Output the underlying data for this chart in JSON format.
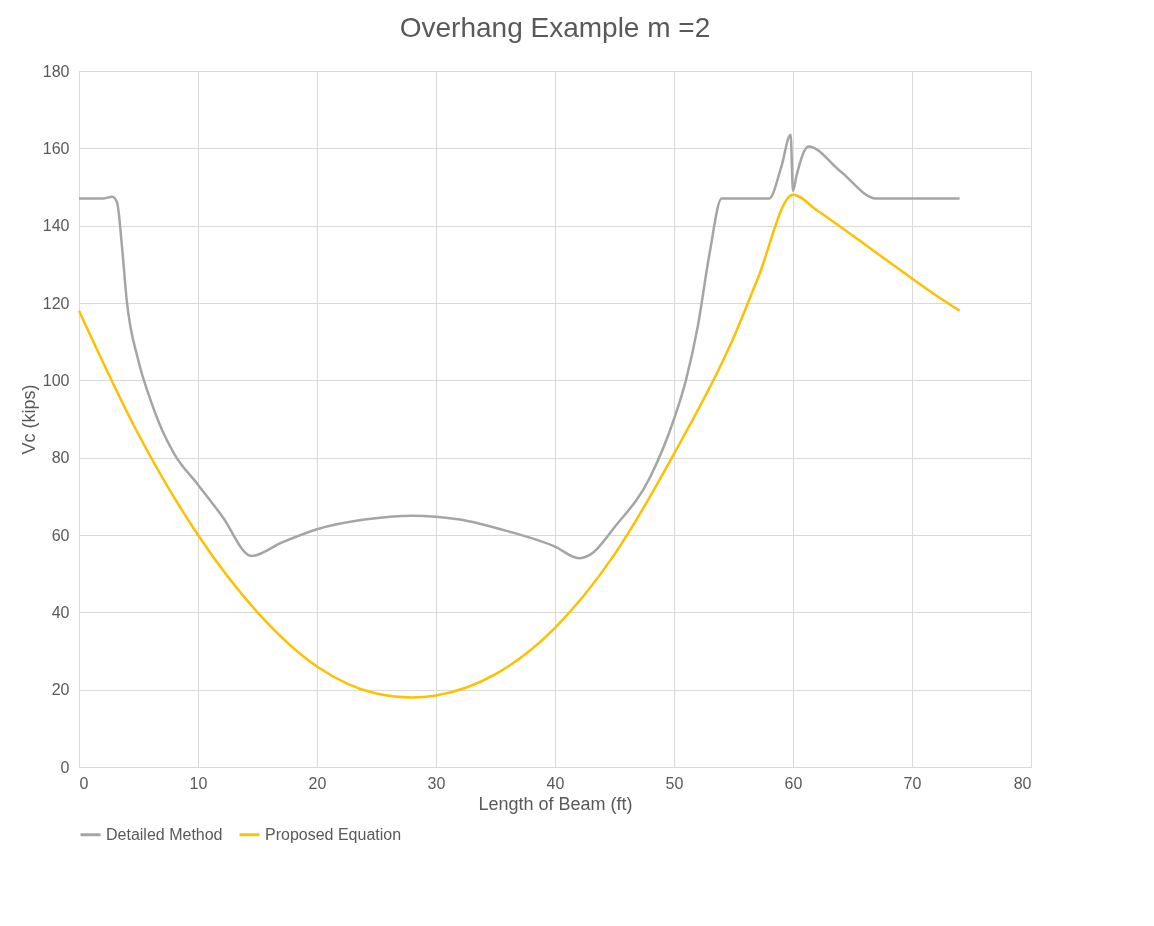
{
  "chart_data": {
    "type": "line",
    "title": "Overhang Example m =2",
    "xlabel": "Length of Beam (ft)",
    "ylabel": "Vc (kips)",
    "xlim": [
      0,
      80
    ],
    "xticks": [
      0,
      10,
      20,
      30,
      40,
      50,
      60,
      70,
      80
    ],
    "ylim": [
      0,
      180
    ],
    "yticks": [
      0,
      20,
      40,
      60,
      80,
      100,
      120,
      140,
      160,
      180
    ],
    "grid": true,
    "legend": "bottom",
    "marker": "none",
    "line_style": "solid",
    "series": [
      {
        "name": "Detailed Method",
        "color": "#a5a5a5",
        "x": [
          0,
          1,
          2,
          2.8,
          3.2,
          3.6,
          4,
          5,
          6,
          7,
          8,
          10,
          12,
          14.5,
          17,
          20,
          24,
          28,
          32,
          36,
          40,
          42,
          43,
          45,
          48,
          50,
          51,
          52,
          53,
          54,
          55,
          58,
          59,
          59.8,
          60,
          60.3,
          61.3,
          64,
          67,
          70,
          74
        ],
        "values": [
          147,
          147,
          147,
          147.5,
          146,
          135,
          121,
          105,
          95,
          87,
          81,
          73,
          65,
          54.6,
          58,
          61.5,
          64,
          65,
          64,
          61,
          57,
          54,
          55,
          62,
          75,
          90,
          100,
          114,
          133,
          147,
          147,
          147,
          155,
          163.5,
          149,
          153,
          160.5,
          154,
          147,
          147,
          147
        ]
      },
      {
        "name": "Proposed Equation",
        "color": "#ffc000",
        "x": [
          0,
          5,
          10,
          15,
          20,
          25,
          28,
          30,
          35,
          40,
          45,
          50,
          55,
          57,
          60,
          62,
          67,
          72,
          74
        ],
        "values": [
          118,
          86,
          60,
          40,
          26,
          19,
          18,
          18.5,
          24,
          36,
          55,
          81,
          111,
          126,
          148,
          144,
          133,
          122,
          118
        ]
      }
    ]
  }
}
